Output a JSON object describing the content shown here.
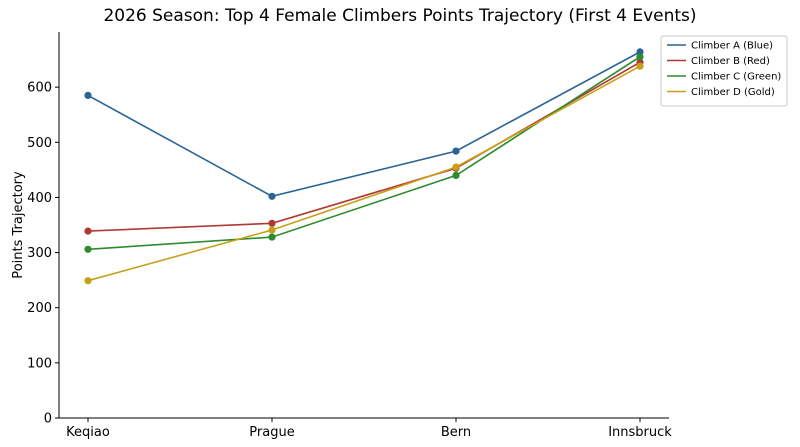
{
  "chart_data": {
    "type": "line",
    "title": "2026 Season: Top 4 Female Climbers Points Trajectory (First 4 Events)",
    "xlabel": "",
    "ylabel": "Points Trajectory",
    "categories": [
      "Keqiao",
      "Prague",
      "Bern",
      "Innsbruck"
    ],
    "ylim": [
      0,
      700
    ],
    "yticks": [
      0,
      100,
      200,
      300,
      400,
      500,
      600
    ],
    "grid": false,
    "legend_position": "top-right",
    "series": [
      {
        "name": "Climber A (Blue)",
        "color": "#2a6496",
        "values": [
          585,
          402,
          484,
          664
        ]
      },
      {
        "name": "Climber B (Red)",
        "color": "#b03a32",
        "values": [
          339,
          353,
          453,
          645
        ]
      },
      {
        "name": "Climber C (Green)",
        "color": "#2e8b2e",
        "values": [
          306,
          328,
          440,
          655
        ]
      },
      {
        "name": "Climber D (Gold)",
        "color": "#c8a018",
        "values": [
          249,
          341,
          455,
          638
        ]
      }
    ]
  }
}
